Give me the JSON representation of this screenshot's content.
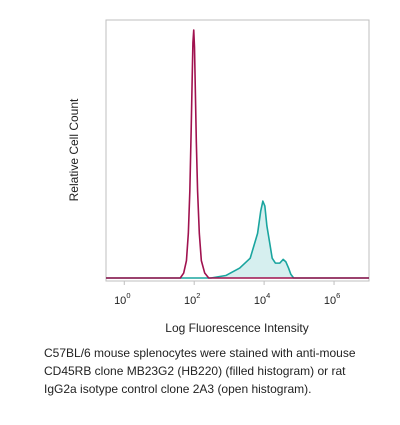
{
  "chart_data": {
    "type": "histogram",
    "xlabel": "Log Fluorescence Intensity",
    "ylabel": "Relative Cell Count",
    "xscale": "log",
    "xlim": [
      0.3,
      10000000
    ],
    "ylim": [
      0,
      1
    ],
    "x_ticks": [
      {
        "value": 1,
        "base": "10",
        "exp": "0"
      },
      {
        "value": 100,
        "base": "10",
        "exp": "2"
      },
      {
        "value": 10000,
        "base": "10",
        "exp": "4"
      },
      {
        "value": 1000000,
        "base": "10",
        "exp": "6"
      }
    ],
    "grid": false,
    "legend": "none",
    "series": [
      {
        "style": "open",
        "color": "#a0124f",
        "points": [
          [
            0.3,
            0
          ],
          [
            40,
            0
          ],
          [
            50,
            0.02
          ],
          [
            60,
            0.07
          ],
          [
            68,
            0.18
          ],
          [
            75,
            0.35
          ],
          [
            82,
            0.6
          ],
          [
            88,
            0.82
          ],
          [
            92,
            0.95
          ],
          [
            97,
            1.0
          ],
          [
            102,
            0.93
          ],
          [
            108,
            0.75
          ],
          [
            115,
            0.55
          ],
          [
            125,
            0.35
          ],
          [
            140,
            0.18
          ],
          [
            160,
            0.07
          ],
          [
            200,
            0.02
          ],
          [
            260,
            0
          ],
          [
            10000000,
            0
          ]
        ]
      },
      {
        "style": "filled",
        "color": "#1aa59f",
        "fill": "#d6efef",
        "points": [
          [
            0.3,
            0
          ],
          [
            300,
            0
          ],
          [
            800,
            0.01
          ],
          [
            2000,
            0.04
          ],
          [
            4000,
            0.08
          ],
          [
            6500,
            0.18
          ],
          [
            8000,
            0.27
          ],
          [
            9200,
            0.31
          ],
          [
            10500,
            0.29
          ],
          [
            12000,
            0.21
          ],
          [
            14500,
            0.14
          ],
          [
            17000,
            0.08
          ],
          [
            21000,
            0.06
          ],
          [
            28000,
            0.06
          ],
          [
            35000,
            0.075
          ],
          [
            42000,
            0.065
          ],
          [
            50000,
            0.04
          ],
          [
            58000,
            0.015
          ],
          [
            70000,
            0
          ],
          [
            10000000,
            0
          ]
        ]
      }
    ]
  },
  "caption": [
    "C57BL/6 mouse splenocytes were stained with anti-mouse",
    "CD45RB clone MB23G2 (HB220) (filled histogram) or rat",
    "IgG2a isotype control clone 2A3 (open histogram)."
  ]
}
